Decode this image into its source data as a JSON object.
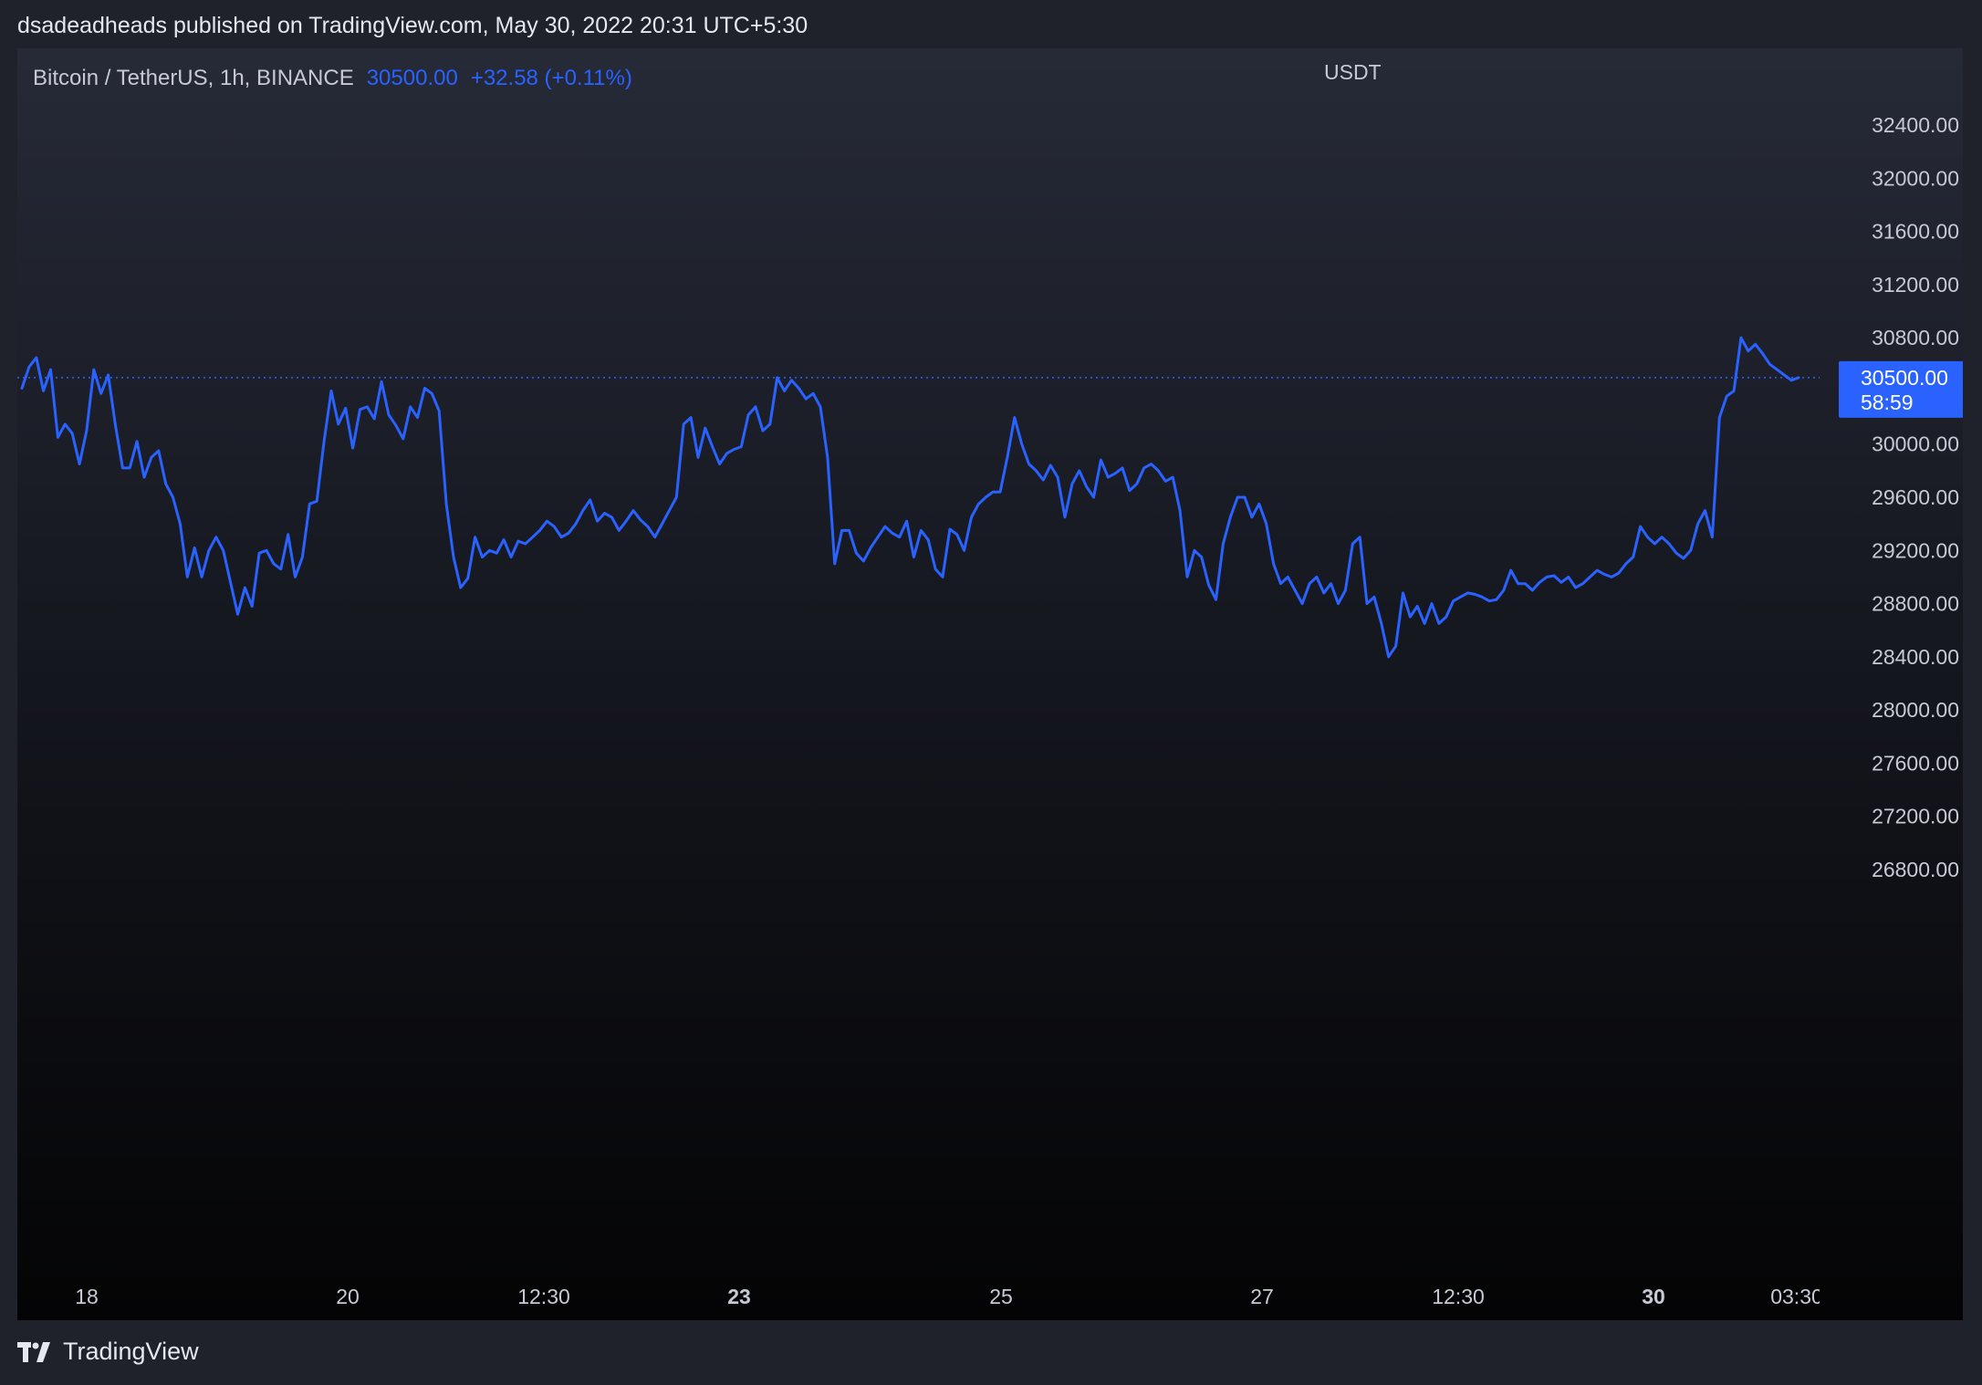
{
  "header": {
    "published_text": "dsadeadheads published on TradingView.com, May 30, 2022 20:31 UTC+5:30"
  },
  "legend": {
    "symbol": "Bitcoin / TetherUS, 1h, BINANCE",
    "price": "30500.00",
    "change": "+32.58 (+0.11%)"
  },
  "footer": {
    "brand": "TradingView"
  },
  "colors": {
    "line": "#2962ff",
    "axis_text": "#c7cad4",
    "badge_bg": "#2962ff"
  },
  "chart_data": {
    "type": "line",
    "symbol": "Bitcoin / TetherUS",
    "interval": "1h",
    "exchange": "BINANCE",
    "currency": "USDT",
    "ylim": [
      26200,
      32700
    ],
    "yticks": [
      32400,
      32000,
      31600,
      31200,
      30800,
      30000,
      29600,
      29200,
      28800,
      28400,
      28000,
      27600,
      27200,
      26800
    ],
    "ytick_labels": [
      "32400.00",
      "32000.00",
      "31600.00",
      "31200.00",
      "30800.00",
      "30000.00",
      "29600.00",
      "29200.00",
      "28800.00",
      "28400.00",
      "28000.00",
      "27600.00",
      "27200.00",
      "26800.00"
    ],
    "xticks": [
      {
        "label": "18",
        "bold": false
      },
      {
        "label": "20",
        "bold": false
      },
      {
        "label": "12:30",
        "bold": false
      },
      {
        "label": "23",
        "bold": true
      },
      {
        "label": "25",
        "bold": false
      },
      {
        "label": "27",
        "bold": false
      },
      {
        "label": "12:30",
        "bold": false
      },
      {
        "label": "30",
        "bold": true
      },
      {
        "label": "03:30",
        "bold": false
      }
    ],
    "last_price": 30500,
    "last_price_label": "30500.00",
    "countdown": "58:59",
    "values": [
      30420,
      30580,
      30650,
      30400,
      30560,
      30050,
      30150,
      30080,
      29850,
      30100,
      30560,
      30380,
      30520,
      30140,
      29820,
      29820,
      30020,
      29750,
      29900,
      29950,
      29700,
      29600,
      29400,
      29000,
      29220,
      29000,
      29200,
      29300,
      29200,
      28960,
      28720,
      28920,
      28780,
      29180,
      29200,
      29100,
      29060,
      29320,
      29000,
      29150,
      29550,
      29570,
      30020,
      30400,
      30150,
      30270,
      29970,
      30260,
      30280,
      30190,
      30470,
      30220,
      30140,
      30040,
      30280,
      30200,
      30420,
      30380,
      30250,
      29550,
      29150,
      28920,
      28990,
      29300,
      29150,
      29200,
      29180,
      29280,
      29150,
      29270,
      29250,
      29300,
      29350,
      29420,
      29380,
      29300,
      29330,
      29400,
      29500,
      29580,
      29420,
      29480,
      29450,
      29350,
      29420,
      29500,
      29430,
      29380,
      29300,
      29400,
      29500,
      29600,
      30150,
      30200,
      29900,
      30120,
      29980,
      29850,
      29930,
      29960,
      29980,
      30220,
      30280,
      30100,
      30150,
      30500,
      30400,
      30480,
      30420,
      30340,
      30380,
      30280,
      29900,
      29100,
      29350,
      29350,
      29180,
      29120,
      29220,
      29300,
      29380,
      29330,
      29300,
      29420,
      29150,
      29350,
      29280,
      29060,
      29000,
      29360,
      29320,
      29200,
      29450,
      29550,
      29600,
      29640,
      29640,
      29900,
      30200,
      30000,
      29850,
      29800,
      29730,
      29840,
      29750,
      29450,
      29700,
      29800,
      29680,
      29600,
      29880,
      29750,
      29780,
      29820,
      29650,
      29700,
      29820,
      29850,
      29800,
      29720,
      29750,
      29500,
      29000,
      29200,
      29150,
      28940,
      28830,
      29250,
      29450,
      29600,
      29600,
      29450,
      29550,
      29400,
      29100,
      28950,
      29000,
      28900,
      28800,
      28950,
      29000,
      28880,
      28950,
      28800,
      28900,
      29250,
      29300,
      28800,
      28850,
      28650,
      28400,
      28480,
      28880,
      28700,
      28780,
      28650,
      28800,
      28650,
      28700,
      28820,
      28850,
      28880,
      28870,
      28850,
      28820,
      28830,
      28900,
      29050,
      28950,
      28950,
      28900,
      28960,
      29000,
      29010,
      28960,
      29000,
      28920,
      28950,
      29000,
      29050,
      29020,
      29000,
      29030,
      29100,
      29150,
      29380,
      29300,
      29250,
      29300,
      29250,
      29180,
      29140,
      29200,
      29400,
      29500,
      29300,
      30200,
      30360,
      30400,
      30800,
      30700,
      30750,
      30680,
      30600,
      30560,
      30520,
      30480,
      30500
    ]
  }
}
